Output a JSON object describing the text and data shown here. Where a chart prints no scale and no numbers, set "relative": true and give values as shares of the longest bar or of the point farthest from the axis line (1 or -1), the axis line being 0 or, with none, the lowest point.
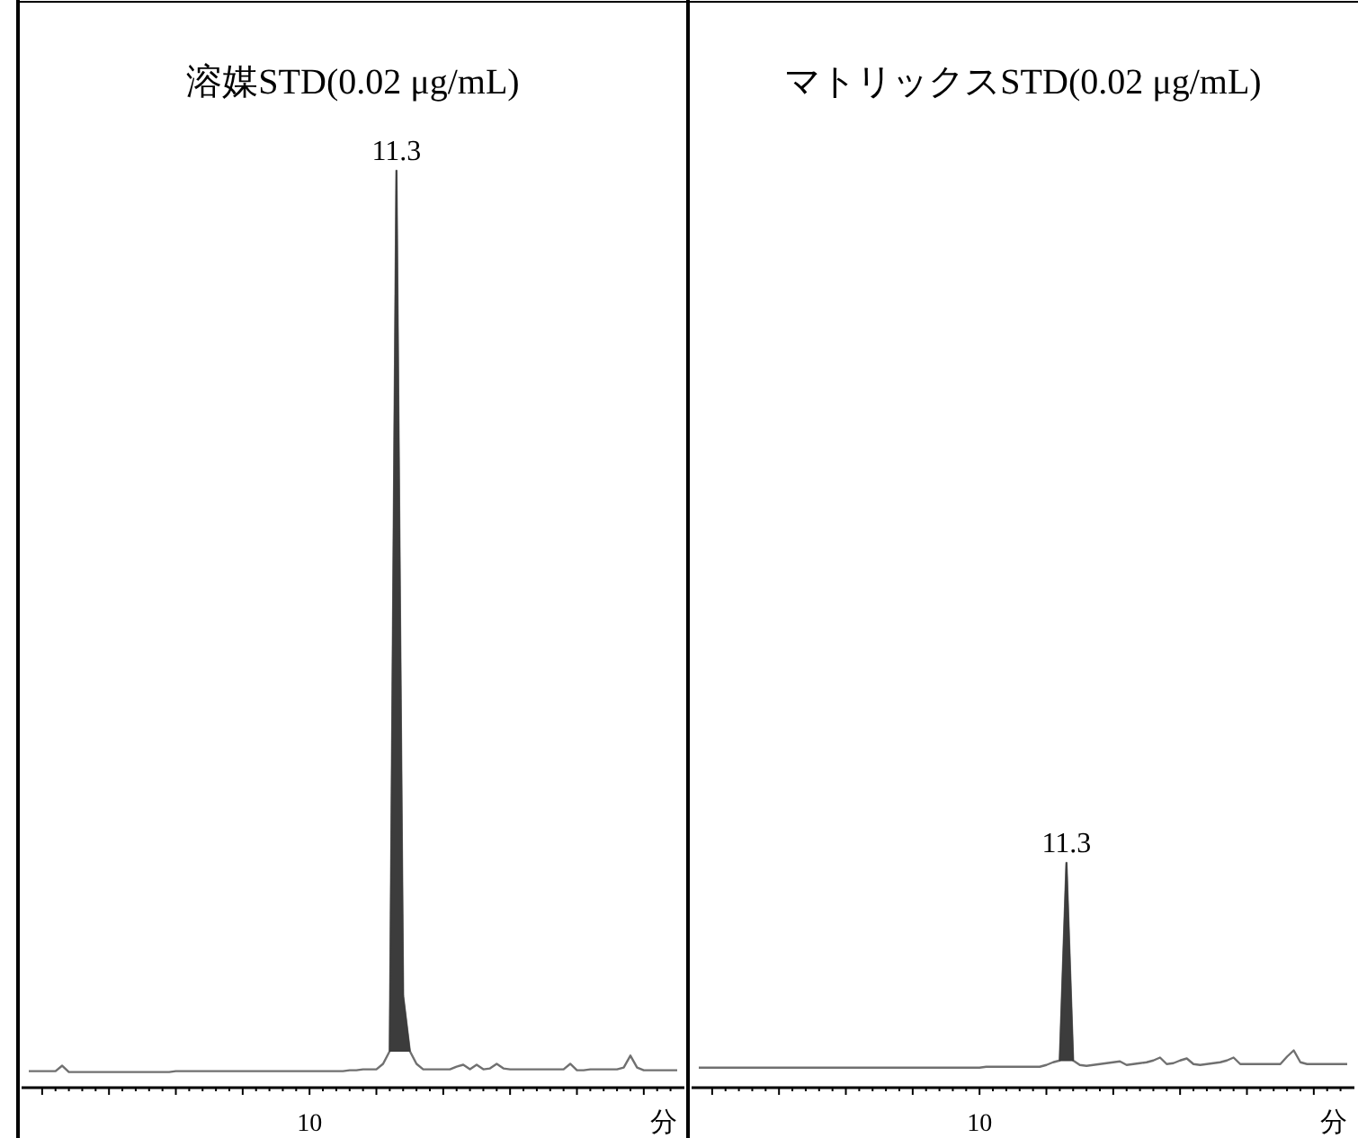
{
  "chart_data": [
    {
      "type": "line",
      "title": "溶媒STD(0.02 μg/mL)",
      "xlabel": "分",
      "relative": true,
      "grid": false,
      "annotations": [
        "11.3",
        "10"
      ],
      "categories": [
        null,
        null,
        null,
        null,
        null,
        null,
        null,
        null,
        null,
        null,
        null,
        null,
        null,
        null,
        null,
        null,
        null,
        null,
        null,
        null,
        null,
        null,
        null,
        null,
        null,
        null,
        null,
        null,
        null,
        null,
        null,
        null,
        null,
        null,
        null,
        null,
        null,
        null,
        null,
        null,
        null,
        null,
        null,
        null,
        null,
        null,
        null,
        null,
        null,
        null,
        null,
        null,
        null,
        null,
        null,
        null,
        null,
        null,
        null,
        null,
        null,
        null,
        null,
        null,
        null,
        null,
        null,
        null,
        null,
        null,
        null,
        null,
        null,
        null,
        null,
        null,
        null,
        null,
        null,
        null,
        null,
        null,
        null,
        null,
        null,
        null,
        null,
        null,
        null,
        null,
        null,
        null,
        null,
        null,
        null,
        null,
        null,
        null
      ],
      "series": [
        {
          "type": "line",
          "color": "#707070",
          "values": [
            0.018,
            0.018,
            0.018,
            0.018,
            0.018,
            0.024,
            0.017,
            0.017,
            0.017,
            0.017,
            0.017,
            0.017,
            0.017,
            0.017,
            0.017,
            0.017,
            0.017,
            0.017,
            0.017,
            0.017,
            0.017,
            0.017,
            0.018,
            0.018,
            0.018,
            0.018,
            0.018,
            0.018,
            0.018,
            0.018,
            0.018,
            0.018,
            0.018,
            0.018,
            0.018,
            0.018,
            0.018,
            0.018,
            0.018,
            0.018,
            0.018,
            0.018,
            0.018,
            0.018,
            0.018,
            0.018,
            0.018,
            0.018,
            0.019,
            0.019,
            0.02,
            0.02,
            0.02,
            0.026,
            0.04,
            1,
            0.1,
            0.04,
            0.026,
            0.02,
            0.02,
            0.02,
            0.02,
            0.02,
            0.023,
            0.025,
            0.02,
            0.025,
            0.02,
            0.021,
            0.026,
            0.021,
            0.02,
            0.02,
            0.02,
            0.02,
            0.02,
            0.02,
            0.02,
            0.02,
            0.02,
            0.026,
            0.019,
            0.019,
            0.02,
            0.02,
            0.02,
            0.02,
            0.02,
            0.022,
            0.035,
            0.022,
            0.019,
            0.019,
            0.019,
            0.019,
            0.019,
            0.019
          ]
        },
        {
          "type": "area",
          "color": "#3c3c3c",
          "values": [
            null,
            null,
            null,
            null,
            null,
            null,
            null,
            null,
            null,
            null,
            null,
            null,
            null,
            null,
            null,
            null,
            null,
            null,
            null,
            null,
            null,
            null,
            null,
            null,
            null,
            null,
            null,
            null,
            null,
            null,
            null,
            null,
            null,
            null,
            null,
            null,
            null,
            null,
            null,
            null,
            null,
            null,
            null,
            null,
            null,
            null,
            null,
            null,
            null,
            null,
            null,
            null,
            null,
            null,
            0.04,
            1,
            0.1,
            0.04,
            null,
            null,
            null,
            null,
            null,
            null,
            null,
            null,
            null,
            null,
            null,
            null,
            null,
            null,
            null,
            null,
            null,
            null,
            null,
            null,
            null,
            null,
            null,
            null,
            null,
            null,
            null,
            null,
            null,
            null,
            null,
            null,
            null,
            null,
            null,
            null,
            null,
            null,
            null,
            null
          ]
        }
      ]
    },
    {
      "type": "line",
      "title": "マトリックスSTD(0.02 μg/mL)",
      "xlabel": "分",
      "relative": true,
      "grid": false,
      "annotations": [
        "11.3",
        "10"
      ],
      "categories": [
        null,
        null,
        null,
        null,
        null,
        null,
        null,
        null,
        null,
        null,
        null,
        null,
        null,
        null,
        null,
        null,
        null,
        null,
        null,
        null,
        null,
        null,
        null,
        null,
        null,
        null,
        null,
        null,
        null,
        null,
        null,
        null,
        null,
        null,
        null,
        null,
        null,
        null,
        null,
        null,
        null,
        null,
        null,
        null,
        null,
        null,
        null,
        null,
        null,
        null,
        null,
        null,
        null,
        null,
        null,
        null,
        null,
        null,
        null,
        null,
        null,
        null,
        null,
        null,
        null,
        null,
        null,
        null,
        null,
        null,
        null,
        null,
        null,
        null,
        null,
        null,
        null,
        null,
        null,
        null,
        null,
        null,
        null,
        null,
        null,
        null,
        null,
        null,
        null,
        null,
        null,
        null,
        null,
        null,
        null,
        null,
        null,
        null
      ],
      "series": [
        {
          "type": "line",
          "color": "#707070",
          "values": [
            0.089,
            0.089,
            0.089,
            0.089,
            0.089,
            0.089,
            0.089,
            0.089,
            0.089,
            0.089,
            0.089,
            0.089,
            0.089,
            0.089,
            0.089,
            0.089,
            0.089,
            0.089,
            0.089,
            0.089,
            0.089,
            0.089,
            0.089,
            0.089,
            0.089,
            0.089,
            0.089,
            0.089,
            0.089,
            0.089,
            0.089,
            0.089,
            0.089,
            0.089,
            0.089,
            0.089,
            0.089,
            0.089,
            0.089,
            0.089,
            0.089,
            0.089,
            0.089,
            0.093,
            0.093,
            0.093,
            0.093,
            0.093,
            0.093,
            0.093,
            0.093,
            0.093,
            0.101,
            0.113,
            0.121,
            1,
            0.121,
            0.101,
            0.097,
            0.101,
            0.105,
            0.109,
            0.113,
            0.117,
            0.101,
            0.105,
            0.109,
            0.113,
            0.121,
            0.134,
            0.105,
            0.109,
            0.121,
            0.13,
            0.105,
            0.101,
            0.105,
            0.109,
            0.113,
            0.121,
            0.134,
            0.105,
            0.105,
            0.105,
            0.105,
            0.105,
            0.105,
            0.105,
            0.138,
            0.166,
            0.113,
            0.105,
            0.105,
            0.105,
            0.105,
            0.105,
            0.105,
            0.105
          ]
        },
        {
          "type": "area",
          "color": "#3c3c3c",
          "values": [
            null,
            null,
            null,
            null,
            null,
            null,
            null,
            null,
            null,
            null,
            null,
            null,
            null,
            null,
            null,
            null,
            null,
            null,
            null,
            null,
            null,
            null,
            null,
            null,
            null,
            null,
            null,
            null,
            null,
            null,
            null,
            null,
            null,
            null,
            null,
            null,
            null,
            null,
            null,
            null,
            null,
            null,
            null,
            null,
            null,
            null,
            null,
            null,
            null,
            null,
            null,
            null,
            null,
            null,
            0.121,
            1,
            0.121,
            null,
            null,
            null,
            null,
            null,
            null,
            null,
            null,
            null,
            null,
            null,
            null,
            null,
            null,
            null,
            null,
            null,
            null,
            null,
            null,
            null,
            null,
            null,
            null,
            null,
            null,
            null,
            null,
            null,
            null,
            null,
            null,
            null,
            null,
            null,
            null,
            null,
            null,
            null,
            null,
            null
          ]
        }
      ]
    }
  ]
}
